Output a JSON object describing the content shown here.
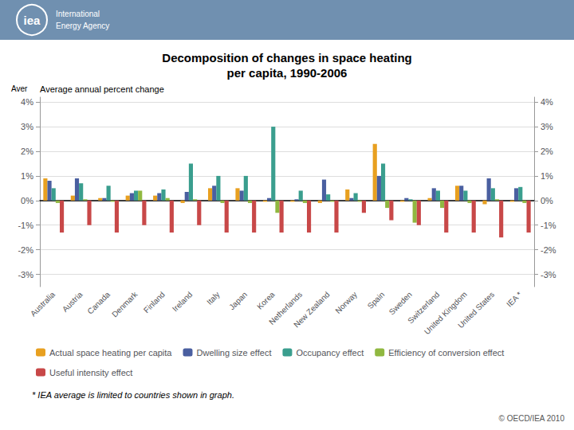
{
  "chart_data": {
    "type": "bar",
    "title": "Decomposition of changes in space heating\nper capita, 1990-2006",
    "subtitle": "Average annual percent change",
    "annotations": [
      "iea",
      "International",
      "Energy Agency",
      "Aver",
      "* IEA average is limited to countries shown in graph.",
      "© OECD/IEA 2010"
    ],
    "categories": [
      "Australia",
      "Austria",
      "Canada",
      "Denmark",
      "Finland",
      "Ireland",
      "Italy",
      "Japan",
      "Korea",
      "Netherlands",
      "New Zealand",
      "Norway",
      "Spain",
      "Sweden",
      "Switzerland",
      "United Kingdom",
      "United States",
      "IEA *"
    ],
    "series": [
      {
        "name": "Actual space heating per capita",
        "color": "#E8A020",
        "values": [
          0.009,
          0.002,
          0.001,
          0.002,
          0.002,
          -0.001,
          0.005,
          0.005,
          -0.0005,
          -0.0005,
          -0.001,
          0.0045,
          0.023,
          -0.0005,
          0.001,
          0.006,
          -0.0015,
          -0.0005
        ]
      },
      {
        "name": "Dwelling size effect",
        "color": "#4A5FA0",
        "values": [
          0.008,
          0.009,
          0.001,
          0.003,
          0.003,
          0.0035,
          0.006,
          0.004,
          0.001,
          0.0005,
          0.0085,
          0.001,
          0.01,
          0.001,
          0.005,
          0.006,
          0.009,
          0.005
        ]
      },
      {
        "name": "Occupancy effect",
        "color": "#3A9E8E",
        "values": [
          0.005,
          0.007,
          0.006,
          0.004,
          0.0045,
          0.015,
          0.01,
          0.01,
          0.03,
          0.004,
          0.0025,
          0.003,
          0.015,
          0.0005,
          0.004,
          0.004,
          0.005,
          0.0055
        ]
      },
      {
        "name": "Efficiency of conversion effect",
        "color": "#90B840",
        "values": [
          -0.001,
          0.0005,
          -0.0005,
          0.004,
          0.001,
          0.0005,
          -0.001,
          -0.001,
          -0.005,
          -0.001,
          -0.0005,
          -0.0005,
          -0.003,
          -0.009,
          -0.003,
          -0.001,
          0.0005,
          -0.001
        ]
      },
      {
        "name": "Useful intensity effect",
        "color": "#C84848",
        "values": [
          -0.013,
          -0.01,
          -0.013,
          -0.01,
          -0.013,
          -0.01,
          -0.013,
          -0.013,
          -0.013,
          -0.013,
          -0.013,
          -0.005,
          -0.008,
          -0.01,
          -0.013,
          -0.013,
          -0.015,
          -0.013
        ]
      }
    ],
    "ylim": [
      -0.035,
      0.042
    ],
    "yticks": [
      {
        "value": -0.03,
        "label": "-3%"
      },
      {
        "value": -0.02,
        "label": "-2%"
      },
      {
        "value": -0.01,
        "label": "-1%"
      },
      {
        "value": 0.0,
        "label": "0%"
      },
      {
        "value": 0.01,
        "label": "1%"
      },
      {
        "value": 0.02,
        "label": "2%"
      },
      {
        "value": 0.03,
        "label": "3%"
      },
      {
        "value": 0.04,
        "label": "4%"
      }
    ],
    "grid": true,
    "legend": "lower left"
  }
}
